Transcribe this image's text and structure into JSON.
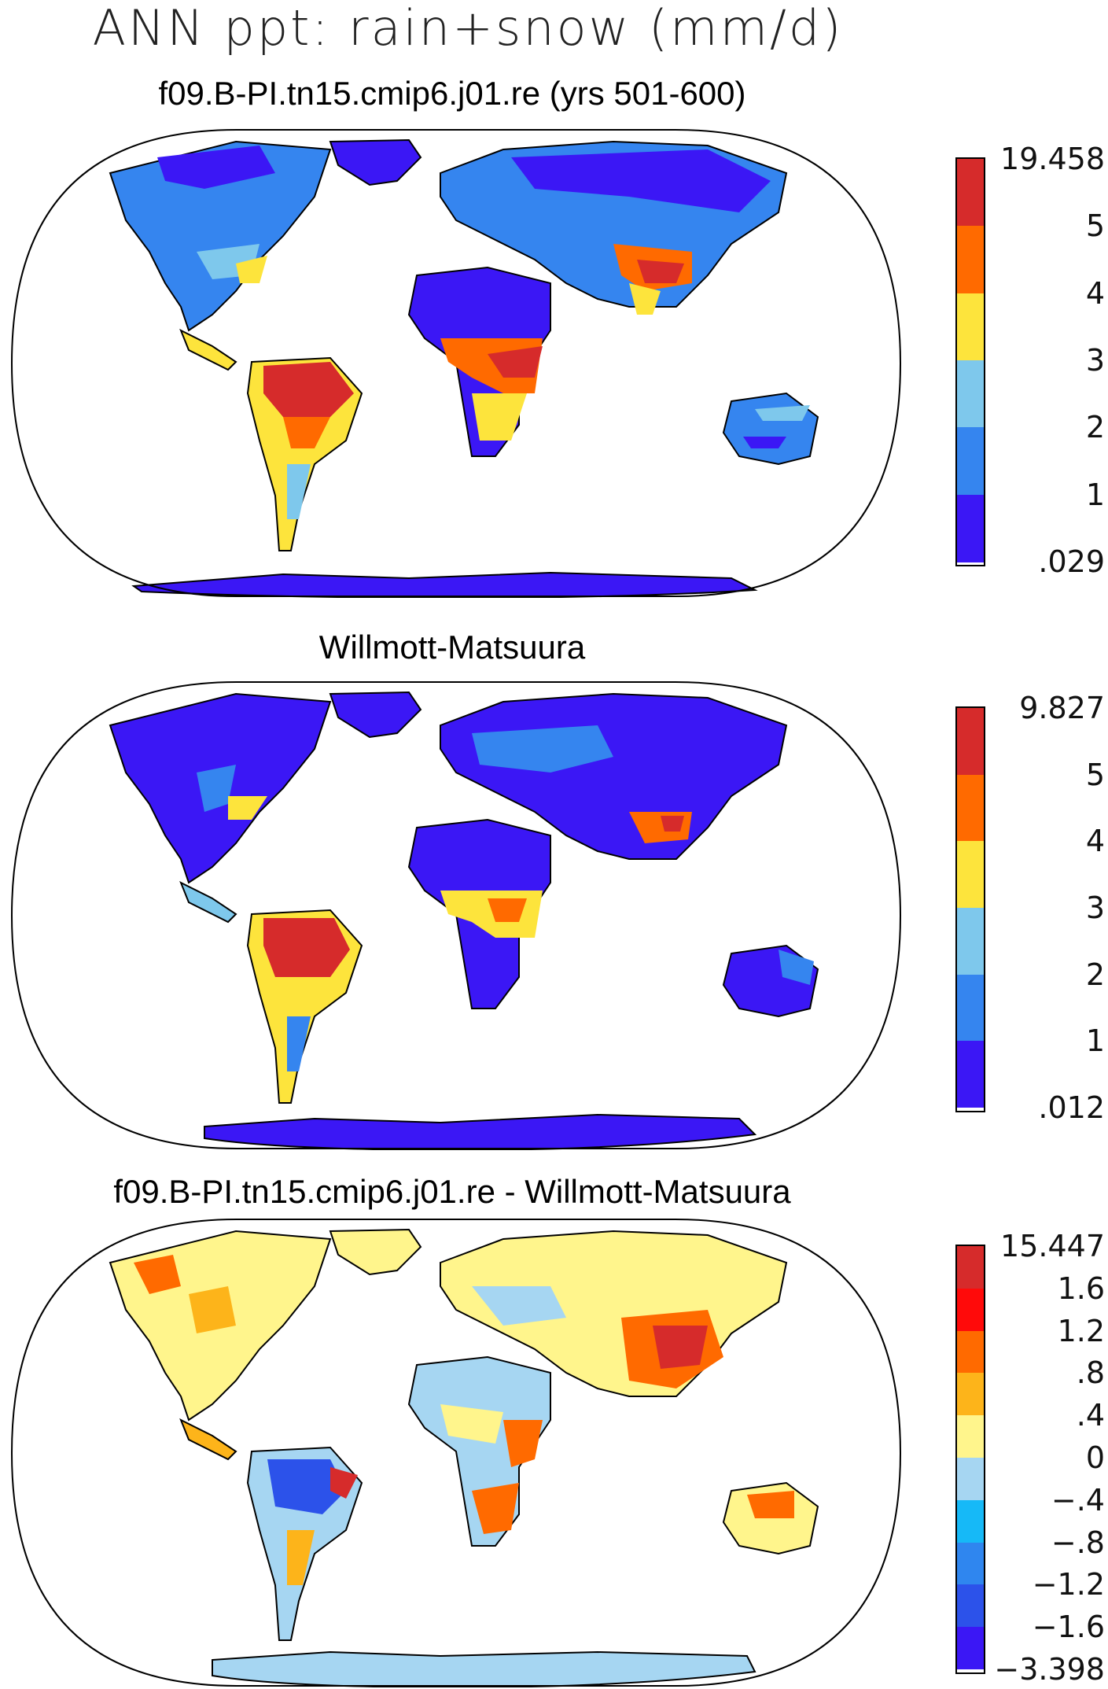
{
  "figure": {
    "title": "ANN ppt: rain+snow (mm/d)"
  },
  "panels": [
    {
      "id": "model",
      "title": "f09.B-PI.tn15.cmip6.j01.re (yrs 501-600)",
      "colorbar": {
        "labels": [
          "19.458",
          "5",
          "4",
          "3",
          "2",
          "1",
          ".029"
        ],
        "colors": [
          "#d62b2b",
          "#ff6a00",
          "#fde43c",
          "#7ec8ec",
          "#3585ef",
          "#3b17f5"
        ]
      }
    },
    {
      "id": "obs",
      "title": "Willmott-Matsuura",
      "colorbar": {
        "labels": [
          "9.827",
          "5",
          "4",
          "3",
          "2",
          "1",
          ".012"
        ],
        "colors": [
          "#d62b2b",
          "#ff6a00",
          "#fde43c",
          "#7ec8ec",
          "#3585ef",
          "#3b17f5"
        ]
      }
    },
    {
      "id": "diff",
      "title": "f09.B-PI.tn15.cmip6.j01.re - Willmott-Matsuura",
      "colorbar": {
        "labels": [
          "15.447",
          "1.6",
          "1.2",
          ".8",
          ".4",
          "0",
          "−.4",
          "−.8",
          "−1.2",
          "−1.6",
          "−3.398"
        ],
        "colors": [
          "#d62b2b",
          "#ff0a0a",
          "#ff6a00",
          "#fdb41a",
          "#fff58c",
          "#a6d6f2",
          "#16b9f7",
          "#2f86ef",
          "#2c52ea",
          "#3b17f5"
        ]
      }
    }
  ]
}
